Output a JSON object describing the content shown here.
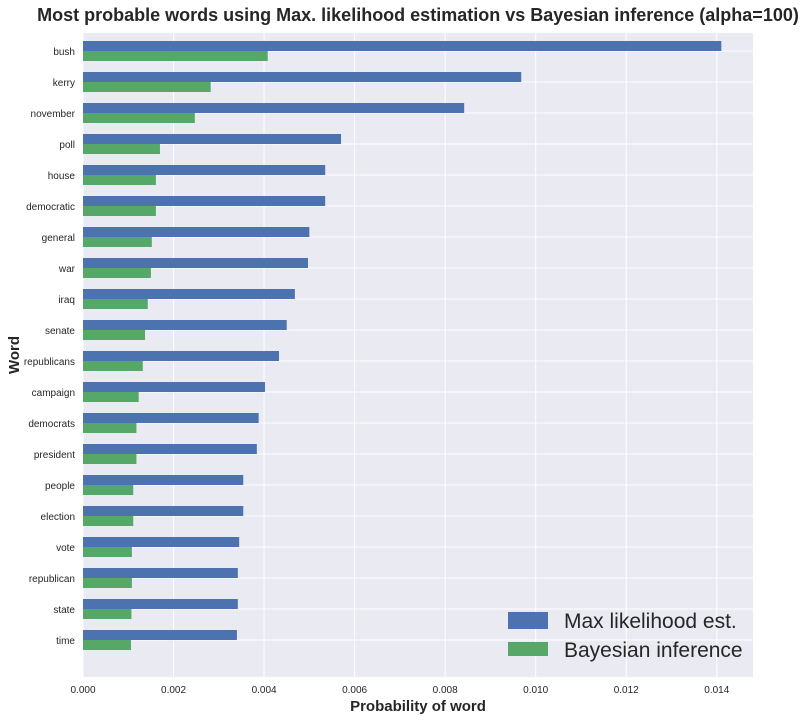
{
  "chart_data": {
    "type": "bar",
    "orientation": "horizontal",
    "title": "Most probable words using Max. likelihood estimation vs Bayesian inference (alpha=100)",
    "xlabel": "Probability of word",
    "ylabel": "Word",
    "xlim": [
      0,
      0.0148
    ],
    "x_ticks": [
      "0.000",
      "0.002",
      "0.004",
      "0.006",
      "0.008",
      "0.010",
      "0.012",
      "0.014"
    ],
    "x_tick_values": [
      0,
      0.002,
      0.004,
      0.006,
      0.008,
      0.01,
      0.012,
      0.014
    ],
    "grid": true,
    "legend_position": "bottom-right",
    "categories": [
      "bush",
      "kerry",
      "november",
      "poll",
      "house",
      "democratic",
      "general",
      "war",
      "iraq",
      "senate",
      "republicans",
      "campaign",
      "democrats",
      "president",
      "people",
      "election",
      "vote",
      "republican",
      "state",
      "time"
    ],
    "series": [
      {
        "name": "Max likelihood est.",
        "color": "#4c72b0",
        "values": [
          0.0141,
          0.00968,
          0.00842,
          0.0057,
          0.00535,
          0.00535,
          0.005,
          0.00497,
          0.00468,
          0.0045,
          0.00433,
          0.00402,
          0.00388,
          0.00384,
          0.00354,
          0.00354,
          0.00345,
          0.00342,
          0.00342,
          0.0034
        ]
      },
      {
        "name": "Bayesian inference",
        "color": "#55a868",
        "values": [
          0.00408,
          0.00282,
          0.00247,
          0.0017,
          0.00161,
          0.00161,
          0.00152,
          0.0015,
          0.00143,
          0.00137,
          0.00132,
          0.00123,
          0.00118,
          0.00118,
          0.00111,
          0.00111,
          0.00108,
          0.00108,
          0.00107,
          0.00106
        ]
      }
    ]
  },
  "colors": {
    "plot_background": "#eaeaf2",
    "grid": "#ffffff",
    "text": "#262626"
  }
}
